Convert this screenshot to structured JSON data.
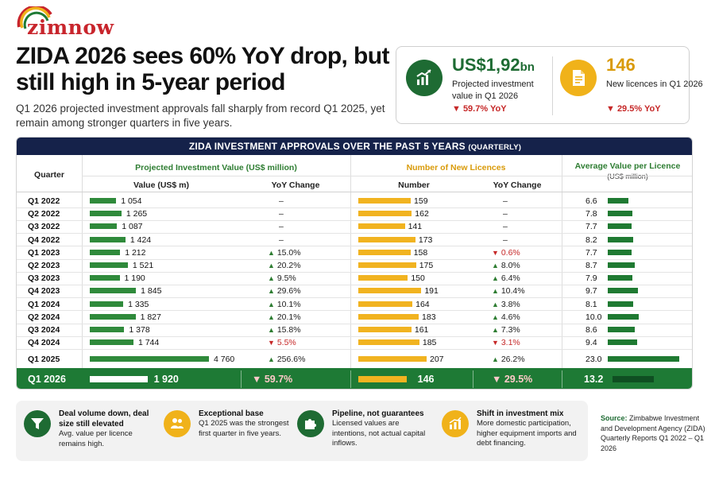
{
  "brand": {
    "logo_text": "zimnow"
  },
  "headline": "ZIDA 2026 sees 60% YoY drop, but still high in 5-year period",
  "subhead": "Q1 2026 projected investment approvals fall sharply from record Q1 2025, yet remain among stronger quarters in five years.",
  "kpis": [
    {
      "value": "US$1,92",
      "unit": "bn",
      "label": "Projected investment value in Q1 2026",
      "change": "▼ 59.7% YoY",
      "icon": "growth-chart-icon"
    },
    {
      "value": "146",
      "unit": "",
      "label": "New licences in Q1 2026",
      "change": "▼ 29.5% YoY",
      "icon": "document-icon"
    }
  ],
  "colors": {
    "green": "#2f8a3b",
    "gold": "#f1b320",
    "navy": "#15224a",
    "red": "#c62828",
    "dark_green": "#1e7a35"
  },
  "chart_data": {
    "type": "table",
    "title": "ZIDA INVESTMENT APPROVALS OVER THE PAST 5 YEARS",
    "title_note": "(QUARTERLY)",
    "headers": {
      "quarter": "Quarter",
      "investment_group": "Projected Investment Value (US$ million)",
      "value": "Value (US$ m)",
      "value_yoy": "YoY Change",
      "licences_group": "Number of New Licences",
      "number": "Number",
      "number_yoy": "YoY Change",
      "avg_group": "Average Value per Licence",
      "avg_unit": "(US$ million)"
    },
    "value_max": 4760,
    "number_max": 207,
    "avg_max": 23.0,
    "rows": [
      {
        "quarter": "Q1 2022",
        "value": 1054,
        "value_label": "1 054",
        "value_yoy": "–",
        "value_dir": "none",
        "number": 159,
        "number_label": "159",
        "number_yoy": "–",
        "number_dir": "none",
        "avg": 6.6,
        "avg_label": "6.6"
      },
      {
        "quarter": "Q2 2022",
        "value": 1265,
        "value_label": "1 265",
        "value_yoy": "–",
        "value_dir": "none",
        "number": 162,
        "number_label": "162",
        "number_yoy": "–",
        "number_dir": "none",
        "avg": 7.8,
        "avg_label": "7.8"
      },
      {
        "quarter": "Q3 2022",
        "value": 1087,
        "value_label": "1 087",
        "value_yoy": "–",
        "value_dir": "none",
        "number": 141,
        "number_label": "141",
        "number_yoy": "–",
        "number_dir": "none",
        "avg": 7.7,
        "avg_label": "7.7"
      },
      {
        "quarter": "Q4 2022",
        "value": 1424,
        "value_label": "1 424",
        "value_yoy": "–",
        "value_dir": "none",
        "number": 173,
        "number_label": "173",
        "number_yoy": "–",
        "number_dir": "none",
        "avg": 8.2,
        "avg_label": "8.2"
      },
      {
        "quarter": "Q1 2023",
        "value": 1212,
        "value_label": "1 212",
        "value_yoy": "15.0%",
        "value_dir": "up",
        "number": 158,
        "number_label": "158",
        "number_yoy": "0.6%",
        "number_dir": "down",
        "avg": 7.7,
        "avg_label": "7.7"
      },
      {
        "quarter": "Q2 2023",
        "value": 1521,
        "value_label": "1 521",
        "value_yoy": "20.2%",
        "value_dir": "up",
        "number": 175,
        "number_label": "175",
        "number_yoy": "8.0%",
        "number_dir": "up",
        "avg": 8.7,
        "avg_label": "8.7"
      },
      {
        "quarter": "Q3 2023",
        "value": 1190,
        "value_label": "1 190",
        "value_yoy": "9.5%",
        "value_dir": "up",
        "number": 150,
        "number_label": "150",
        "number_yoy": "6.4%",
        "number_dir": "up",
        "avg": 7.9,
        "avg_label": "7.9"
      },
      {
        "quarter": "Q4 2023",
        "value": 1845,
        "value_label": "1 845",
        "value_yoy": "29.6%",
        "value_dir": "up",
        "number": 191,
        "number_label": "191",
        "number_yoy": "10.4%",
        "number_dir": "up",
        "avg": 9.7,
        "avg_label": "9.7"
      },
      {
        "quarter": "Q1 2024",
        "value": 1335,
        "value_label": "1 335",
        "value_yoy": "10.1%",
        "value_dir": "up",
        "number": 164,
        "number_label": "164",
        "number_yoy": "3.8%",
        "number_dir": "up",
        "avg": 8.1,
        "avg_label": "8.1"
      },
      {
        "quarter": "Q2 2024",
        "value": 1827,
        "value_label": "1 827",
        "value_yoy": "20.1%",
        "value_dir": "up",
        "number": 183,
        "number_label": "183",
        "number_yoy": "4.6%",
        "number_dir": "up",
        "avg": 10.0,
        "avg_label": "10.0"
      },
      {
        "quarter": "Q3 2024",
        "value": 1378,
        "value_label": "1 378",
        "value_yoy": "15.8%",
        "value_dir": "up",
        "number": 161,
        "number_label": "161",
        "number_yoy": "7.3%",
        "number_dir": "up",
        "avg": 8.6,
        "avg_label": "8.6"
      },
      {
        "quarter": "Q4 2024",
        "value": 1744,
        "value_label": "1 744",
        "value_yoy": "5.5%",
        "value_dir": "down",
        "number": 185,
        "number_label": "185",
        "number_yoy": "3.1%",
        "number_dir": "down",
        "avg": 9.4,
        "avg_label": "9.4"
      },
      {
        "quarter": "Q1 2025",
        "value": 4760,
        "value_label": "4 760",
        "value_yoy": "256.6%",
        "value_dir": "up",
        "number": 207,
        "number_label": "207",
        "number_yoy": "26.2%",
        "number_dir": "up",
        "avg": 23.0,
        "avg_label": "23.0"
      }
    ],
    "total": {
      "quarter": "Q1 2026",
      "value": 1920,
      "value_label": "1 920",
      "value_yoy": "59.7%",
      "value_dir": "down",
      "number": 146,
      "number_label": "146",
      "number_yoy": "29.5%",
      "number_dir": "down",
      "avg": 13.2,
      "avg_label": "13.2"
    }
  },
  "insights": [
    {
      "title": "Deal volume down, deal size still elevated",
      "body": "Avg. value per licence remains high.",
      "icon": "filter-icon",
      "color": "green"
    },
    {
      "title": "Exceptional base",
      "body": "Q1 2025 was the strongest first quarter in five years.",
      "icon": "people-icon",
      "color": "gold"
    },
    {
      "title": "Pipeline, not guarantees",
      "body": "Licensed values are intentions, not actual capital inflows.",
      "icon": "puzzle-icon",
      "color": "green"
    },
    {
      "title": "Shift in investment mix",
      "body": "More domestic participation, higher equipment imports and debt financing.",
      "icon": "bar-chart-icon",
      "color": "gold"
    }
  ],
  "source": {
    "label": "Source:",
    "text": "Zimbabwe Investment and Development Agency (ZIDA) Quarterly Reports Q1 2022 – Q1 2026"
  }
}
